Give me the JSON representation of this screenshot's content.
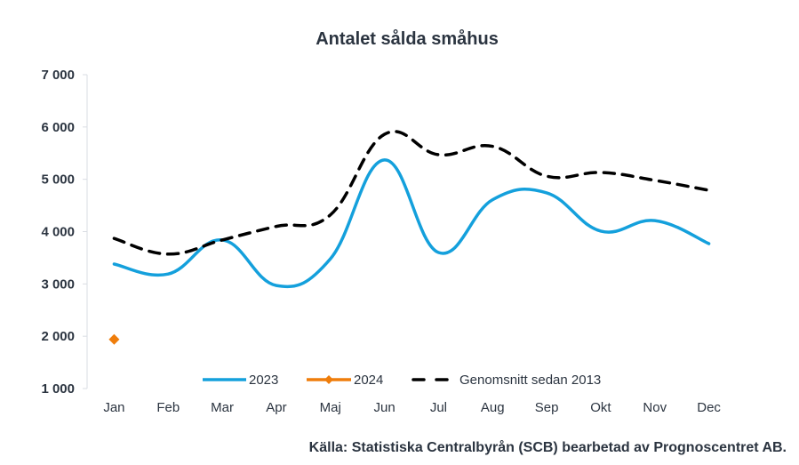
{
  "chart_data": {
    "type": "line",
    "title": "Antalet sålda småhus",
    "xlabel": "",
    "ylabel": "",
    "categories": [
      "Jan",
      "Feb",
      "Mar",
      "Apr",
      "Maj",
      "Jun",
      "Jul",
      "Aug",
      "Sep",
      "Okt",
      "Nov",
      "Dec"
    ],
    "ylim": [
      1000,
      7000
    ],
    "yticks": [
      1000,
      2000,
      3000,
      4000,
      5000,
      6000,
      7000
    ],
    "ytick_labels": [
      "1 000",
      "2 000",
      "3 000",
      "4 000",
      "5 000",
      "6 000",
      "7 000"
    ],
    "grid": false,
    "legend_position": "bottom-inside",
    "series": [
      {
        "name": "2023",
        "color": "#14a0dc",
        "style": "solid-smooth",
        "values": [
          3380,
          3190,
          3840,
          2970,
          3480,
          5370,
          3600,
          4610,
          4740,
          4010,
          4210,
          3770
        ]
      },
      {
        "name": "2024",
        "color": "#ef7d0b",
        "style": "diamond-marker",
        "values": [
          1940,
          null,
          null,
          null,
          null,
          null,
          null,
          null,
          null,
          null,
          null,
          null
        ]
      },
      {
        "name": "Genomsnitt sedan 2013",
        "color": "#000000",
        "style": "dashed-smooth",
        "values": [
          3870,
          3570,
          3840,
          4100,
          4320,
          5860,
          5470,
          5630,
          5060,
          5130,
          4980,
          4790
        ]
      }
    ],
    "source": "Källa: Statistiska Centralbyrån (SCB) bearbetad av Prognoscentret AB."
  }
}
